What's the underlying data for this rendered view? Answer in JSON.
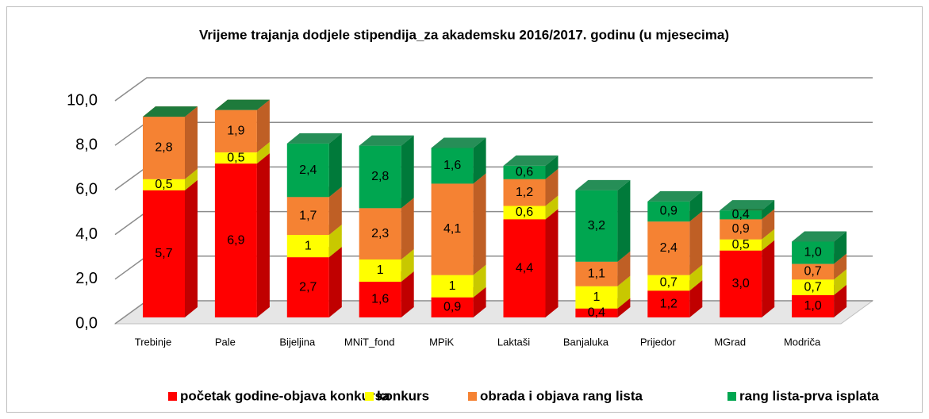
{
  "chart_data": {
    "type": "stacked_bar_3d",
    "title": "Vrijeme trajanja dodjele stipendija_za akademsku 2016/2017. godinu (u mjesecima)",
    "categories": [
      "Trebinje",
      "Pale",
      "Bijeljina",
      "MNiT_fond",
      "MPiK",
      "Laktaši",
      "Banjaluka",
      "Prijedor",
      "MGrad",
      "Modriča"
    ],
    "series": [
      {
        "name": "početak godine-objava konkursa",
        "color": "#ff0000",
        "side_color": "#c00000",
        "values": [
          5.7,
          6.9,
          2.7,
          1.6,
          0.9,
          4.4,
          0.4,
          1.2,
          3.0,
          1.0
        ],
        "value_labels": [
          "5,7",
          "6,9",
          "2,7",
          "1,6",
          "0,9",
          "4,4",
          "0,4",
          "1,2",
          "3,0",
          "1,0"
        ]
      },
      {
        "name": "konkurs",
        "color": "#ffff00",
        "side_color": "#c8c800",
        "values": [
          0.5,
          0.5,
          1,
          1,
          1,
          0.6,
          1,
          0.7,
          0.5,
          0.7
        ],
        "value_labels": [
          "0,5",
          "0,5",
          "1",
          "1",
          "1",
          "0,6",
          "1",
          "0,7",
          "0,5",
          "0,7"
        ]
      },
      {
        "name": "obrada i objava rang lista",
        "color": "#f58233",
        "side_color": "#bf5f25",
        "values": [
          2.8,
          1.9,
          1.7,
          2.3,
          4.1,
          1.2,
          1.1,
          2.4,
          0.9,
          0.7
        ],
        "value_labels": [
          "2,8",
          "1,9",
          "1,7",
          "2,3",
          "4,1",
          "1,2",
          "1,1",
          "2,4",
          "0,9",
          "0,7"
        ]
      },
      {
        "name": "rang lista-prva isplata",
        "color": "#00a650",
        "side_color": "#007a3a",
        "values": [
          0,
          0,
          2.4,
          2.8,
          1.6,
          0.6,
          3.2,
          0.9,
          0.4,
          1.0
        ],
        "value_labels": [
          null,
          null,
          "2,4",
          "2,8",
          "1,6",
          "0,6",
          "3,2",
          "0,9",
          "0,4",
          "1,0"
        ]
      }
    ],
    "ylim": [
      0,
      10
    ],
    "yticks": [
      {
        "value": 0,
        "label": "0,0"
      },
      {
        "value": 2,
        "label": "2,0"
      },
      {
        "value": 4,
        "label": "4,0"
      },
      {
        "value": 6,
        "label": "6,0"
      },
      {
        "value": 8,
        "label": "8,0"
      },
      {
        "value": 10,
        "label": "10,0"
      }
    ],
    "grid": true,
    "legend": "bottom"
  }
}
